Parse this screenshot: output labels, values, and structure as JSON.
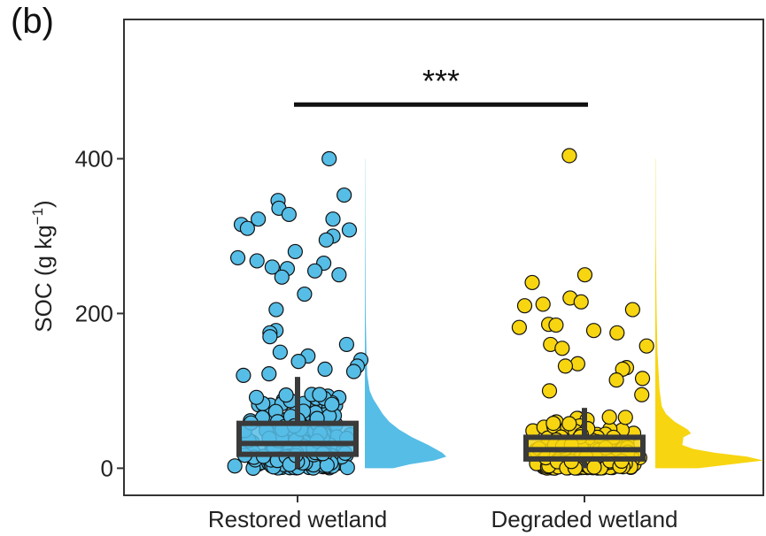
{
  "panel_label": "(b)",
  "colors": {
    "restored": "#56bde6",
    "degraded": "#f7d511",
    "outline": "#111111",
    "box_line": "#3a3a3a",
    "axis": "#333333"
  },
  "chart_data": {
    "type": "raincloud",
    "ylabel_main": "SOC (g kg",
    "ylabel_sup": "−1",
    "ylabel_tail": ")",
    "ylim": [
      -35,
      580
    ],
    "yticks": [
      0,
      200,
      400
    ],
    "ytick_labels": [
      "0",
      "200",
      "400"
    ],
    "categories": [
      "Restored wetland",
      "Degraded wetland"
    ],
    "significance": "***",
    "grid": false,
    "series": [
      {
        "name": "Restored wetland",
        "box": {
          "q1": 18,
          "median": 32,
          "q3": 58,
          "whisker_low": 0,
          "whisker_high": 118
        },
        "outliers": [
          400,
          353,
          346,
          336,
          328,
          322,
          322,
          315,
          310,
          308,
          300,
          295,
          280,
          272,
          268,
          265,
          260,
          258,
          255,
          250,
          247,
          225,
          205,
          178,
          175,
          170,
          160,
          150,
          145,
          140,
          138,
          132,
          128,
          125,
          122,
          120
        ],
        "density": [
          [
            0,
            0.35
          ],
          [
            5,
            0.55
          ],
          [
            10,
            0.85
          ],
          [
            15,
            1.0
          ],
          [
            20,
            0.95
          ],
          [
            30,
            0.78
          ],
          [
            40,
            0.58
          ],
          [
            50,
            0.42
          ],
          [
            60,
            0.3
          ],
          [
            70,
            0.22
          ],
          [
            80,
            0.16
          ],
          [
            90,
            0.1
          ],
          [
            100,
            0.06
          ],
          [
            120,
            0.03
          ],
          [
            150,
            0.02
          ],
          [
            200,
            0.01
          ],
          [
            300,
            0.005
          ],
          [
            400,
            0.002
          ]
        ]
      },
      {
        "name": "Degraded wetland",
        "box": {
          "q1": 12,
          "median": 24,
          "q3": 40,
          "whisker_low": 0,
          "whisker_high": 78
        },
        "outliers": [
          404,
          250,
          240,
          220,
          215,
          212,
          210,
          205,
          186,
          185,
          182,
          178,
          175,
          160,
          158,
          155,
          135,
          132,
          130,
          128,
          116,
          114,
          100,
          95
        ],
        "density": [
          [
            0,
            0.4
          ],
          [
            5,
            0.7
          ],
          [
            10,
            1.0
          ],
          [
            15,
            0.85
          ],
          [
            20,
            0.55
          ],
          [
            25,
            0.35
          ],
          [
            30,
            0.25
          ],
          [
            40,
            0.26
          ],
          [
            45,
            0.33
          ],
          [
            50,
            0.3
          ],
          [
            60,
            0.18
          ],
          [
            70,
            0.1
          ],
          [
            80,
            0.06
          ],
          [
            100,
            0.04
          ],
          [
            150,
            0.02
          ],
          [
            200,
            0.012
          ],
          [
            300,
            0.004
          ],
          [
            400,
            0.002
          ]
        ]
      }
    ]
  }
}
